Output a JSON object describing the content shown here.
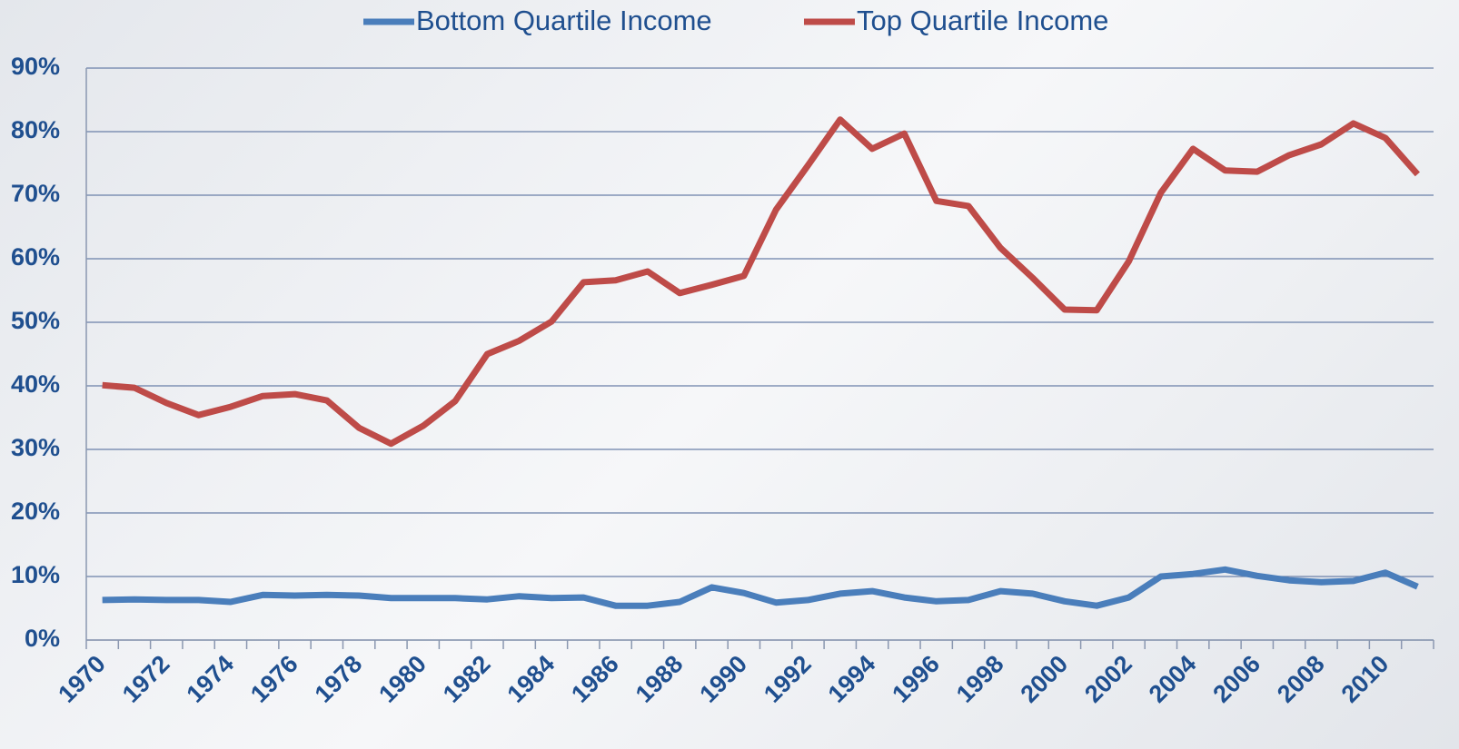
{
  "chart_data": {
    "type": "line",
    "categories": [
      "1970",
      null,
      "1972",
      null,
      "1974",
      null,
      "1976",
      null,
      "1978",
      null,
      "1980",
      null,
      "1982",
      null,
      "1984",
      null,
      "1986",
      null,
      "1988",
      null,
      "1990",
      null,
      "1992",
      null,
      "1994",
      null,
      "1996",
      null,
      "1998",
      null,
      "2000",
      null,
      "2002",
      null,
      "2004",
      null,
      "2006",
      null,
      "2008",
      null,
      "2010",
      null
    ],
    "series": [
      {
        "name": "Bottom Quartile Income",
        "color": "#4a7ebb",
        "values": [
          6.3,
          6.4,
          6.3,
          6.3,
          6.0,
          7.1,
          7.0,
          7.1,
          7.0,
          6.6,
          6.6,
          6.6,
          6.4,
          6.9,
          6.6,
          6.7,
          5.4,
          5.4,
          6.0,
          8.3,
          7.4,
          5.9,
          6.3,
          7.3,
          7.7,
          6.7,
          6.1,
          6.3,
          7.7,
          7.3,
          6.1,
          5.4,
          6.7,
          10.0,
          10.4,
          11.1,
          10.1,
          9.4,
          9.1,
          9.3,
          10.6,
          8.4
        ]
      },
      {
        "name": "Top Quartile Income",
        "color": "#be4b48",
        "values": [
          40.1,
          39.7,
          37.3,
          35.4,
          36.7,
          38.4,
          38.7,
          37.7,
          33.4,
          30.9,
          33.7,
          37.6,
          45.0,
          47.1,
          50.1,
          56.3,
          56.6,
          58.0,
          54.6,
          55.9,
          57.3,
          67.7,
          74.7,
          81.9,
          77.3,
          79.7,
          69.1,
          68.3,
          61.7,
          57.0,
          52.0,
          51.9,
          59.6,
          70.4,
          77.3,
          73.9,
          73.7,
          76.3,
          78.0,
          81.3,
          79.0,
          73.3
        ]
      }
    ],
    "ylim": [
      0,
      90
    ],
    "yticks": [
      {
        "value": 0,
        "label": "0%"
      },
      {
        "value": 10,
        "label": "10%"
      },
      {
        "value": 20,
        "label": "20%"
      },
      {
        "value": 30,
        "label": "30%"
      },
      {
        "value": 40,
        "label": "40%"
      },
      {
        "value": 50,
        "label": "50%"
      },
      {
        "value": 60,
        "label": "60%"
      },
      {
        "value": 70,
        "label": "70%"
      },
      {
        "value": 80,
        "label": "80%"
      },
      {
        "value": 90,
        "label": "90%"
      }
    ],
    "grid": true,
    "legend": "top"
  }
}
